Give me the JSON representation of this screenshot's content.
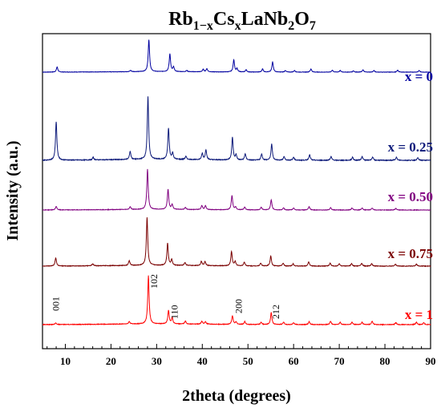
{
  "chart_data": {
    "type": "line",
    "title": "Rb1−xCsxLaNb2O7",
    "title_parts": {
      "a": "Rb",
      "b": "1−x",
      "c": "Cs",
      "d": "x",
      "e": "LaNb",
      "f": "2",
      "g": "O",
      "h": "7"
    },
    "xlabel": "2theta (degrees)",
    "ylabel": "Intensity (a.u.)",
    "xlim": [
      5,
      90
    ],
    "x_ticks": [
      10,
      20,
      30,
      40,
      50,
      60,
      70,
      80,
      90
    ],
    "y_ticks_shown": false,
    "legend": "labels at right of each curve",
    "series": [
      {
        "name": "x = 0",
        "color": "#0000a0",
        "peaks": [
          [
            8.2,
            0.16
          ],
          [
            24.3,
            0.04
          ],
          [
            28.3,
            1.0
          ],
          [
            32.9,
            0.55
          ],
          [
            33.7,
            0.14
          ],
          [
            36.6,
            0.04
          ],
          [
            40.2,
            0.08
          ],
          [
            41.0,
            0.1
          ],
          [
            46.9,
            0.38
          ],
          [
            47.6,
            0.1
          ],
          [
            49.6,
            0.07
          ],
          [
            53.2,
            0.1
          ],
          [
            55.4,
            0.32
          ],
          [
            58.2,
            0.05
          ],
          [
            60.2,
            0.05
          ],
          [
            63.8,
            0.1
          ],
          [
            68.5,
            0.06
          ],
          [
            70.2,
            0.05
          ],
          [
            73.1,
            0.04
          ],
          [
            75.2,
            0.07
          ],
          [
            77.6,
            0.05
          ],
          [
            82.8,
            0.06
          ],
          [
            87.5,
            0.05
          ]
        ]
      },
      {
        "name": "x = 0.25",
        "color": "#0d1a7a",
        "peaks": [
          [
            8.0,
            0.62
          ],
          [
            16.1,
            0.04
          ],
          [
            24.2,
            0.13
          ],
          [
            28.1,
            1.0
          ],
          [
            32.6,
            0.5
          ],
          [
            33.5,
            0.1
          ],
          [
            36.4,
            0.05
          ],
          [
            40.0,
            0.1
          ],
          [
            40.8,
            0.16
          ],
          [
            46.6,
            0.36
          ],
          [
            47.4,
            0.08
          ],
          [
            49.4,
            0.1
          ],
          [
            53.0,
            0.1
          ],
          [
            55.2,
            0.26
          ],
          [
            57.9,
            0.06
          ],
          [
            60.0,
            0.05
          ],
          [
            63.5,
            0.09
          ],
          [
            68.2,
            0.06
          ],
          [
            72.9,
            0.05
          ],
          [
            75.0,
            0.06
          ],
          [
            77.3,
            0.05
          ],
          [
            82.5,
            0.05
          ],
          [
            87.2,
            0.04
          ]
        ]
      },
      {
        "name": "x = 0.50",
        "color": "#800080",
        "peaks": [
          [
            8.0,
            0.09
          ],
          [
            24.2,
            0.07
          ],
          [
            28.0,
            1.0
          ],
          [
            32.5,
            0.5
          ],
          [
            33.4,
            0.12
          ],
          [
            36.3,
            0.05
          ],
          [
            39.9,
            0.1
          ],
          [
            40.7,
            0.1
          ],
          [
            46.5,
            0.36
          ],
          [
            47.3,
            0.07
          ],
          [
            49.3,
            0.07
          ],
          [
            52.9,
            0.07
          ],
          [
            55.1,
            0.25
          ],
          [
            57.8,
            0.05
          ],
          [
            60.0,
            0.05
          ],
          [
            63.4,
            0.08
          ],
          [
            68.1,
            0.06
          ],
          [
            72.8,
            0.05
          ],
          [
            75.0,
            0.05
          ],
          [
            77.2,
            0.05
          ],
          [
            82.4,
            0.04
          ]
        ]
      },
      {
        "name": "x = 0.75",
        "color": "#7a0000",
        "peaks": [
          [
            7.9,
            0.17
          ],
          [
            16.0,
            0.04
          ],
          [
            24.0,
            0.1
          ],
          [
            27.9,
            1.0
          ],
          [
            32.4,
            0.46
          ],
          [
            33.3,
            0.12
          ],
          [
            36.2,
            0.06
          ],
          [
            39.8,
            0.09
          ],
          [
            40.6,
            0.09
          ],
          [
            46.4,
            0.3
          ],
          [
            47.2,
            0.09
          ],
          [
            49.2,
            0.08
          ],
          [
            52.8,
            0.06
          ],
          [
            55.0,
            0.21
          ],
          [
            57.7,
            0.06
          ],
          [
            59.9,
            0.05
          ],
          [
            63.3,
            0.09
          ],
          [
            68.0,
            0.06
          ],
          [
            70.0,
            0.05
          ],
          [
            72.7,
            0.05
          ],
          [
            74.9,
            0.06
          ],
          [
            77.1,
            0.05
          ],
          [
            82.3,
            0.04
          ],
          [
            86.9,
            0.04
          ]
        ]
      },
      {
        "name": "x = 1",
        "color": "#ff0000",
        "peaks": [
          [
            7.9,
            0.03
          ],
          [
            24.0,
            0.05
          ],
          [
            28.2,
            1.0
          ],
          [
            32.6,
            0.28
          ],
          [
            33.4,
            0.13
          ],
          [
            36.3,
            0.06
          ],
          [
            39.9,
            0.06
          ],
          [
            40.7,
            0.05
          ],
          [
            46.6,
            0.18
          ],
          [
            47.4,
            0.05
          ],
          [
            49.3,
            0.06
          ],
          [
            52.9,
            0.05
          ],
          [
            55.1,
            0.25
          ],
          [
            57.8,
            0.05
          ],
          [
            60.0,
            0.04
          ],
          [
            63.4,
            0.06
          ],
          [
            68.1,
            0.07
          ],
          [
            70.2,
            0.05
          ],
          [
            72.8,
            0.05
          ],
          [
            75.0,
            0.05
          ],
          [
            77.2,
            0.07
          ],
          [
            82.4,
            0.04
          ],
          [
            86.9,
            0.05
          ],
          [
            88.5,
            0.04
          ]
        ]
      }
    ],
    "annotations": [
      {
        "text": "001",
        "x": 8.6
      },
      {
        "text": "102",
        "x": 30.1
      },
      {
        "text": "110",
        "x": 34.6
      },
      {
        "text": "200",
        "x": 48.6
      },
      {
        "text": "212",
        "x": 56.8
      }
    ]
  }
}
